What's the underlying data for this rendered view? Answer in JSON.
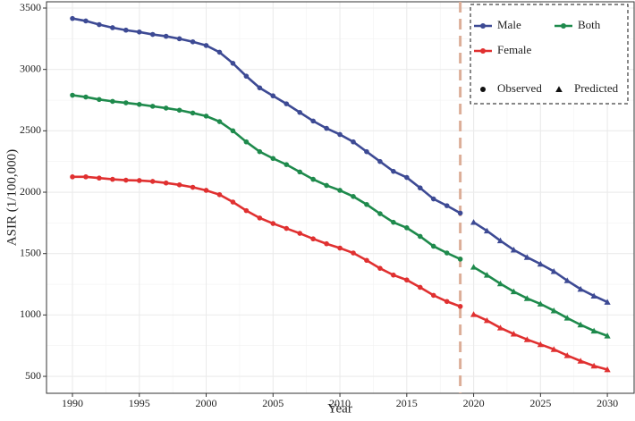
{
  "chart_data": {
    "type": "line",
    "x_label": "Year",
    "y_label": "ASIR (1/100,000)",
    "x": [
      1990,
      1991,
      1992,
      1993,
      1994,
      1995,
      1996,
      1997,
      1998,
      1999,
      2000,
      2001,
      2002,
      2003,
      2004,
      2005,
      2006,
      2007,
      2008,
      2009,
      2010,
      2011,
      2012,
      2013,
      2014,
      2015,
      2016,
      2017,
      2018,
      2019,
      2020,
      2021,
      2022,
      2023,
      2024,
      2025,
      2026,
      2027,
      2028,
      2029,
      2030
    ],
    "series": [
      {
        "name": "Male",
        "color": "#3d4a94",
        "values": [
          3415,
          3395,
          3365,
          3340,
          3320,
          3305,
          3285,
          3270,
          3250,
          3225,
          3195,
          3140,
          3050,
          2945,
          2850,
          2785,
          2720,
          2650,
          2580,
          2520,
          2470,
          2410,
          2330,
          2250,
          2170,
          2120,
          2035,
          1945,
          1890,
          1830,
          1755,
          1685,
          1605,
          1530,
          1470,
          1415,
          1355,
          1280,
          1210,
          1155,
          1105
        ]
      },
      {
        "name": "Both",
        "color": "#1e8a4c",
        "values": [
          2790,
          2775,
          2755,
          2740,
          2728,
          2715,
          2700,
          2685,
          2668,
          2645,
          2620,
          2575,
          2500,
          2410,
          2330,
          2275,
          2225,
          2165,
          2105,
          2055,
          2015,
          1965,
          1900,
          1825,
          1755,
          1710,
          1640,
          1560,
          1505,
          1455,
          1390,
          1325,
          1255,
          1190,
          1135,
          1090,
          1035,
          975,
          920,
          870,
          830
        ]
      },
      {
        "name": "Female",
        "color": "#e03030",
        "values": [
          2125,
          2125,
          2115,
          2105,
          2098,
          2095,
          2088,
          2075,
          2060,
          2040,
          2015,
          1980,
          1920,
          1850,
          1790,
          1745,
          1705,
          1665,
          1620,
          1580,
          1545,
          1505,
          1445,
          1380,
          1325,
          1285,
          1225,
          1160,
          1110,
          1070,
          1005,
          955,
          895,
          845,
          800,
          760,
          720,
          670,
          625,
          585,
          555
        ]
      }
    ],
    "shape_legend": [
      "Observed",
      "Predicted"
    ],
    "vline": 2019,
    "vline_color": "#dcae98",
    "xlim": [
      1988.06,
      2032
    ],
    "ylim": [
      362,
      3551
    ],
    "xticks": [
      1990,
      1995,
      2000,
      2005,
      2010,
      2015,
      2020,
      2025,
      2030
    ],
    "yticks": [
      500,
      1000,
      1500,
      2000,
      2500,
      3000,
      3500
    ],
    "grid": true
  }
}
